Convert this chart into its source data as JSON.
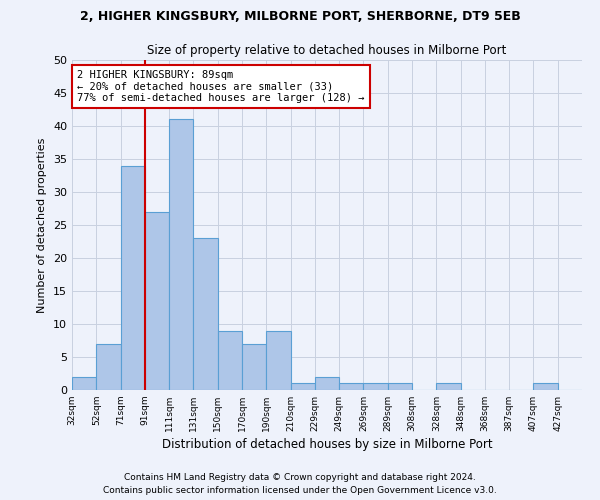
{
  "title1": "2, HIGHER KINGSBURY, MILBORNE PORT, SHERBORNE, DT9 5EB",
  "title2": "Size of property relative to detached houses in Milborne Port",
  "xlabel": "Distribution of detached houses by size in Milborne Port",
  "ylabel": "Number of detached properties",
  "bin_labels": [
    "32sqm",
    "52sqm",
    "71sqm",
    "91sqm",
    "111sqm",
    "131sqm",
    "150sqm",
    "170sqm",
    "190sqm",
    "210sqm",
    "229sqm",
    "249sqm",
    "269sqm",
    "289sqm",
    "308sqm",
    "328sqm",
    "348sqm",
    "368sqm",
    "387sqm",
    "407sqm",
    "427sqm"
  ],
  "values": [
    2,
    7,
    34,
    27,
    41,
    23,
    9,
    7,
    9,
    1,
    2,
    1,
    1,
    1,
    0,
    1,
    0,
    0,
    0,
    1,
    0
  ],
  "bar_color": "#aec6e8",
  "bar_edge_color": "#5a9fd4",
  "grid_color": "#c8d0e0",
  "background_color": "#eef2fb",
  "vline_color": "#cc0000",
  "annotation_text": "2 HIGHER KINGSBURY: 89sqm\n← 20% of detached houses are smaller (33)\n77% of semi-detached houses are larger (128) →",
  "annotation_box_color": "#ffffff",
  "annotation_box_edge": "#cc0000",
  "footer1": "Contains HM Land Registry data © Crown copyright and database right 2024.",
  "footer2": "Contains public sector information licensed under the Open Government Licence v3.0.",
  "ylim": [
    0,
    50
  ],
  "yticks": [
    0,
    5,
    10,
    15,
    20,
    25,
    30,
    35,
    40,
    45,
    50
  ]
}
